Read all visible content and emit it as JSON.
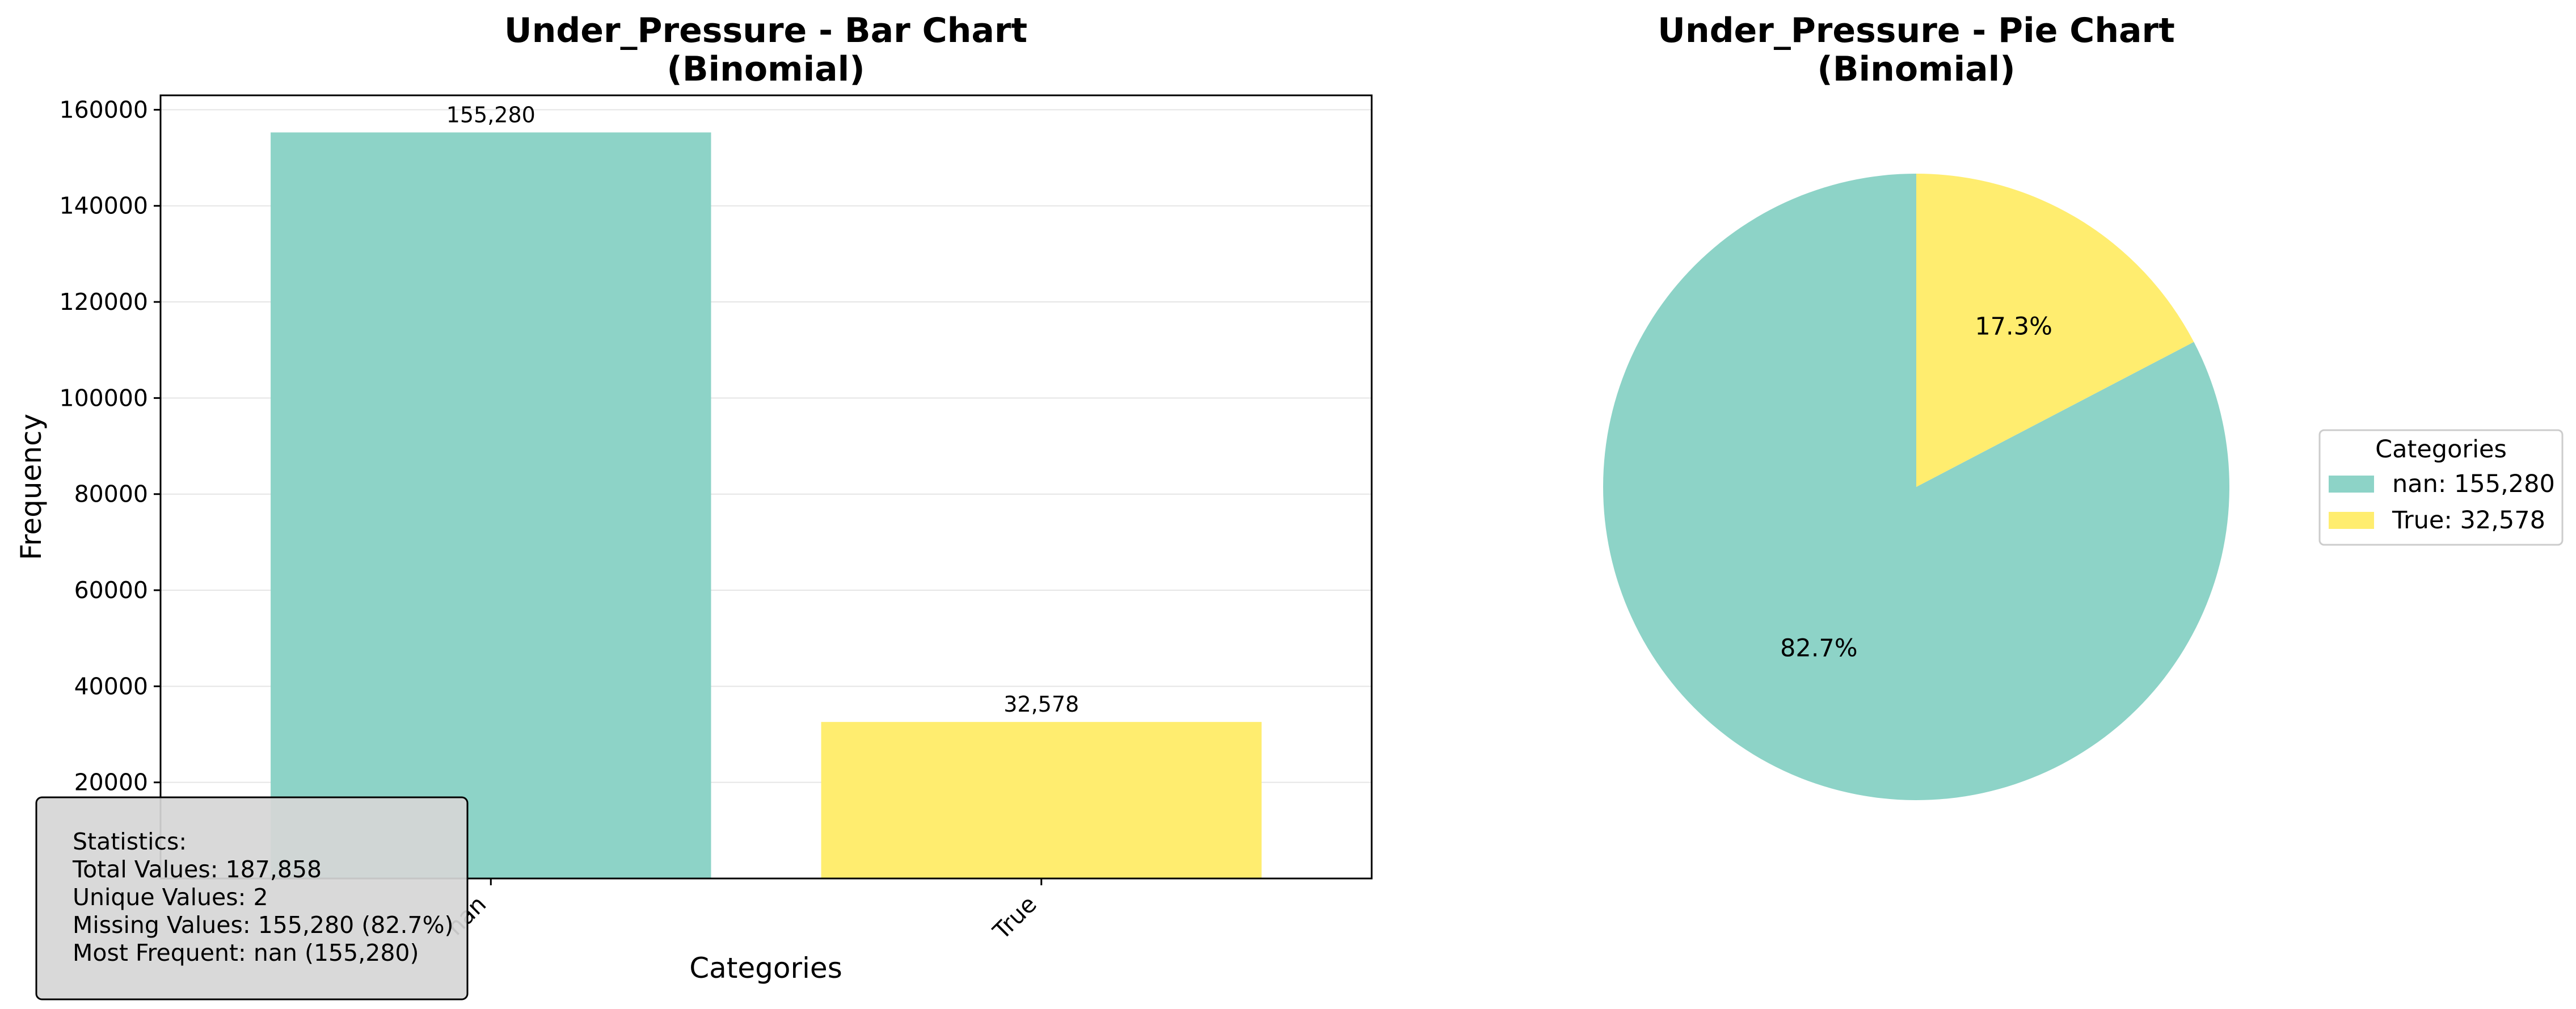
{
  "colors": {
    "teal": "#8dd3c7",
    "yellow": "#ffed6f",
    "grid": "#e5e5e5",
    "stats_bg": "#d6d6d6"
  },
  "bar_chart": {
    "title_line1": "Under_Pressure - Bar Chart",
    "title_line2": "(Binomial)",
    "xlabel": "Categories",
    "ylabel": "Frequency",
    "y_ticks": [
      "20000",
      "40000",
      "60000",
      "80000",
      "100000",
      "120000",
      "140000",
      "160000"
    ],
    "x_tick_labels": [
      "nan",
      "True"
    ],
    "data_labels": [
      "155,280",
      "32,578"
    ]
  },
  "pie_chart": {
    "title_line1": "Under_Pressure - Pie Chart",
    "title_line2": "(Binomial)",
    "pct_labels": [
      "82.7%",
      "17.3%"
    ],
    "legend": {
      "title": "Categories",
      "entries": [
        "nan: 155,280",
        "True: 32,578"
      ]
    }
  },
  "stats_box": {
    "lines": [
      "Statistics:",
      "Total Values: 187,858",
      "Unique Values: 2",
      "Missing Values: 155,280 (82.7%)",
      "Most Frequent: nan (155,280)"
    ]
  },
  "chart_data": [
    {
      "type": "bar",
      "title": "Under_Pressure - Bar Chart (Binomial)",
      "xlabel": "Categories",
      "ylabel": "Frequency",
      "categories": [
        "nan",
        "True"
      ],
      "values": [
        155280,
        32578
      ],
      "ylim": [
        0,
        163000
      ],
      "grid": "y"
    },
    {
      "type": "pie",
      "title": "Under_Pressure - Pie Chart (Binomial)",
      "labels": [
        "nan",
        "True"
      ],
      "values": [
        155280,
        32578
      ],
      "percentages": [
        82.7,
        17.3
      ],
      "legend_placement": "right"
    }
  ]
}
